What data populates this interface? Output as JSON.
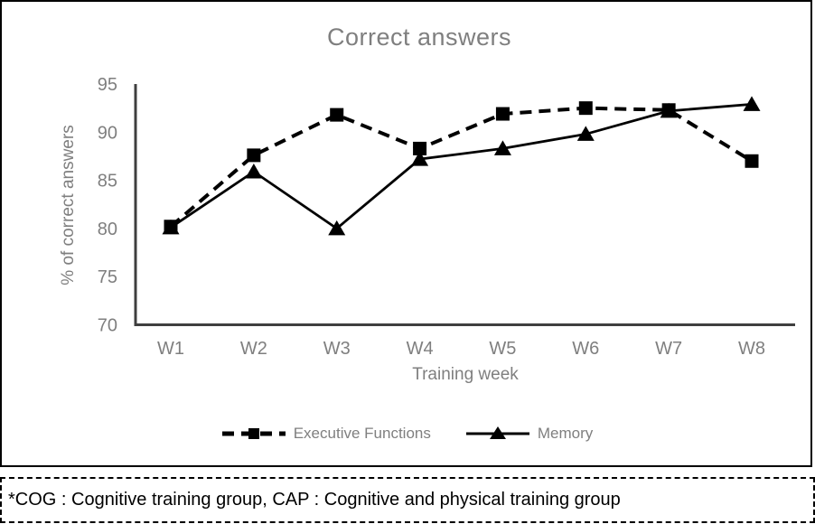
{
  "chart_data": {
    "type": "line",
    "title": "Correct answers",
    "xlabel": "Training week",
    "ylabel": "% of correct answers",
    "categories": [
      "W1",
      "W2",
      "W3",
      "W4",
      "W5",
      "W6",
      "W7",
      "W8"
    ],
    "ylim": [
      70,
      95
    ],
    "yticks": [
      95,
      90,
      85,
      80,
      75,
      70
    ],
    "grid": false,
    "legend_position": "bottom-center",
    "series": [
      {
        "name": "Executive Functions",
        "line_style": "dashed",
        "marker": "square",
        "color": "#000000",
        "values": [
          80.2,
          87.6,
          91.8,
          88.3,
          91.9,
          92.5,
          92.3,
          87.0
        ]
      },
      {
        "name": "Memory",
        "line_style": "solid",
        "marker": "triangle",
        "color": "#000000",
        "values": [
          80.1,
          85.9,
          80.0,
          87.2,
          88.3,
          89.8,
          92.2,
          92.9
        ]
      }
    ]
  },
  "footnote": {
    "text": "*COG : Cognitive training group, CAP : Cognitive and physical training group"
  },
  "colors": {
    "title": "#7f7f7f",
    "axis": "#3f3f3f",
    "tick_labels": "#7f7f7f",
    "axis_titles": "#7f7f7f",
    "legend_text": "#7f7f7f",
    "series": "#000000",
    "chart_border": "#000000",
    "footnote_border": "#000000",
    "footnote_text": "#000000",
    "background": "#ffffff"
  }
}
